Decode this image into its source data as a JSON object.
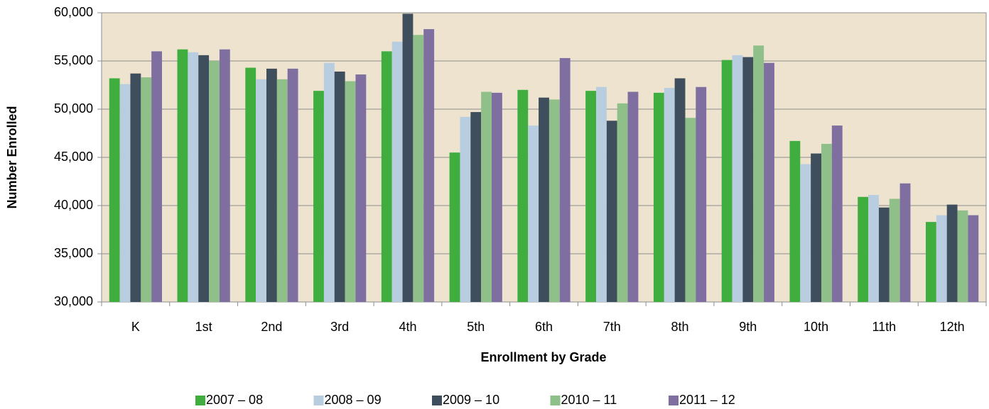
{
  "chart_data": {
    "type": "bar",
    "y_label": "Number Enrolled",
    "x_label": "Enrollment by Grade",
    "categories": [
      "K",
      "1st",
      "2nd",
      "3rd",
      "4th",
      "5th",
      "6th",
      "7th",
      "8th",
      "9th",
      "10th",
      "11th",
      "12th"
    ],
    "series": [
      {
        "name": "2007 – 08",
        "color": "#3fae3f",
        "values": [
          53200,
          56200,
          54300,
          51900,
          56000,
          45500,
          52000,
          51900,
          51700,
          55100,
          46700,
          40900,
          38300
        ]
      },
      {
        "name": "2008 – 09",
        "color": "#b9cde0",
        "values": [
          52600,
          55900,
          53100,
          54800,
          57000,
          49200,
          48300,
          52300,
          52200,
          55600,
          44300,
          41100,
          39000
        ]
      },
      {
        "name": "2009 – 10",
        "color": "#3f4e5c",
        "values": [
          53700,
          55600,
          54200,
          53900,
          59900,
          49700,
          51200,
          48800,
          53200,
          55400,
          45400,
          39800,
          40100
        ]
      },
      {
        "name": "2010 – 11",
        "color": "#8fc08a",
        "values": [
          53300,
          55000,
          53100,
          52900,
          57700,
          51800,
          51000,
          50600,
          49100,
          56600,
          46400,
          40700,
          39500
        ]
      },
      {
        "name": "2011 – 12",
        "color": "#7e6fa0",
        "values": [
          56000,
          56200,
          54200,
          53600,
          58300,
          51700,
          55300,
          51800,
          52300,
          54800,
          48300,
          42300,
          39000
        ]
      }
    ],
    "ylim": [
      30000,
      60000
    ],
    "yticks": [
      {
        "value": 30000,
        "label": "30,000"
      },
      {
        "value": 35000,
        "label": "35,000"
      },
      {
        "value": 40000,
        "label": "40,000"
      },
      {
        "value": 45000,
        "label": "45,000"
      },
      {
        "value": 50000,
        "label": "50,000"
      },
      {
        "value": 55000,
        "label": "55,000"
      },
      {
        "value": 60000,
        "label": "60,000"
      }
    ],
    "grid": true,
    "legend": "bottom"
  }
}
